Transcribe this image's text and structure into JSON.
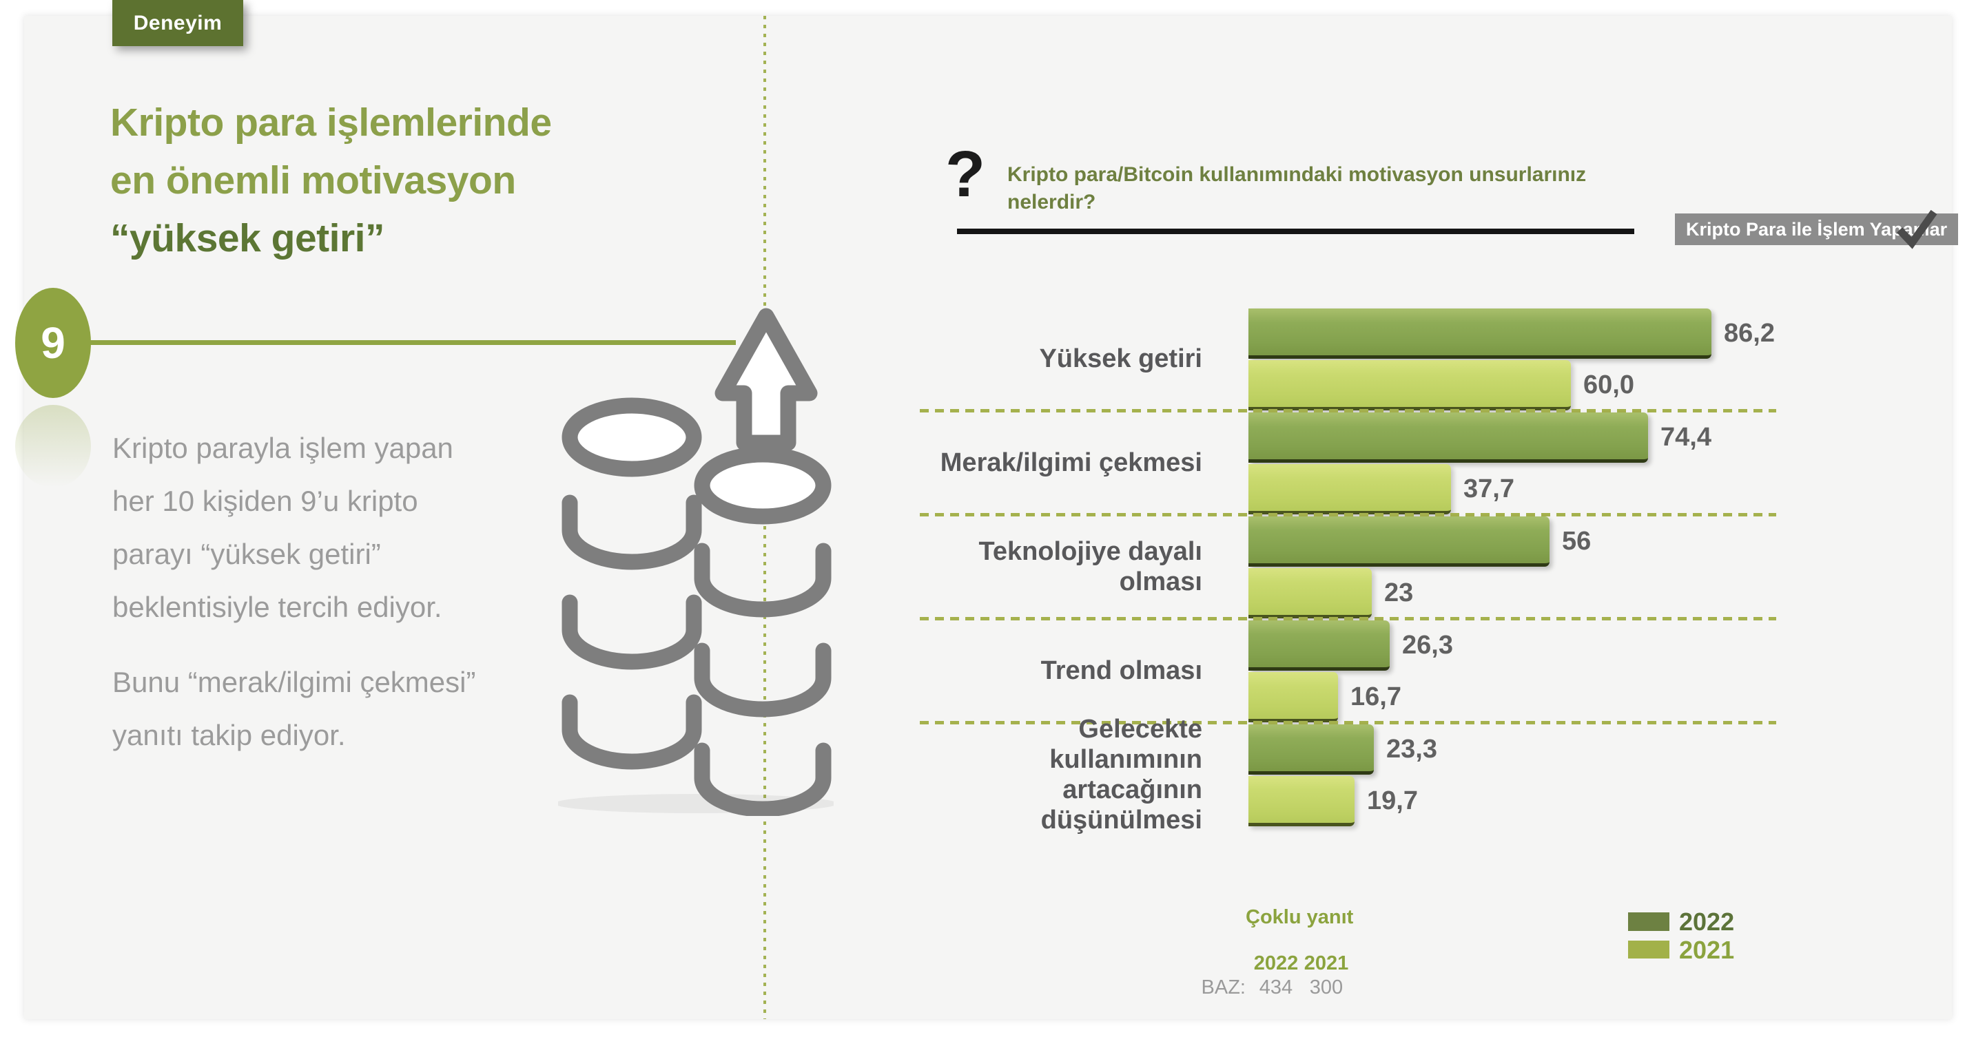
{
  "palette": {
    "slide_bg": "#f5f5f4",
    "tag_bg": "#5d7230",
    "heading_light": "#8ca04a",
    "heading_dark": "#5c7634",
    "body_text": "#9b9b9b",
    "accent_green": "#8fa442",
    "question_text": "#6e8040",
    "badge_bg": "#8c8c8c",
    "check_icon": "#4b4b4b",
    "separator_green": "#a5b14d",
    "icon_gray": "#7e7e7e"
  },
  "slide": {
    "tag": "Deneyim",
    "number": "9",
    "heading_light_lines": "Kripto para işlemlerinde\nen önemli motivasyon",
    "heading_dark_line": "“yüksek getiri”",
    "paragraph1": "Kripto parayla işlem yapan\nher 10 kişiden 9’u kripto\nparayı “yüksek getiri”\nbeklentisiyle tercih ediyor.",
    "paragraph2": "Bunu “merak/ilgimi çekmesi”\nyanıtı takip ediyor."
  },
  "question": {
    "mark": "?",
    "text": "Kripto para/Bitcoin kullanımındaki motivasyon unsurlarınız nelerdir?",
    "audience_badge": "Kripto Para ile İşlem Yapanlar"
  },
  "chart_data": {
    "type": "bar",
    "orientation": "horizontal",
    "categories": [
      "Yüksek getiri",
      "Merak/ilgimi çekmesi",
      "Teknolojiye dayalı olması",
      "Trend olması",
      "Gelecekte kullanımının\nartacağının düşünülmesi"
    ],
    "series": [
      {
        "name": "2022",
        "color": "#84a24e",
        "legend_color": "#6d8142",
        "values": [
          86.2,
          74.4,
          56,
          26.3,
          23.3
        ],
        "value_labels": [
          "86,2",
          "74,4",
          "56",
          "26,3",
          "23,3"
        ]
      },
      {
        "name": "2021",
        "color": "#c0d264",
        "legend_color": "#a2b149",
        "values": [
          60.0,
          37.7,
          23,
          16.7,
          19.7
        ],
        "value_labels": [
          "60,0",
          "37,7",
          "23",
          "16,7",
          "19,7"
        ]
      }
    ],
    "xlim": [
      0,
      100
    ],
    "grid": "dashed-row-separators",
    "legend_position": "bottom-right",
    "note": "Çoklu yanıt",
    "base": {
      "label": "BAZ:",
      "years": [
        "2022",
        "2021"
      ],
      "values": [
        "434",
        "300"
      ]
    }
  }
}
